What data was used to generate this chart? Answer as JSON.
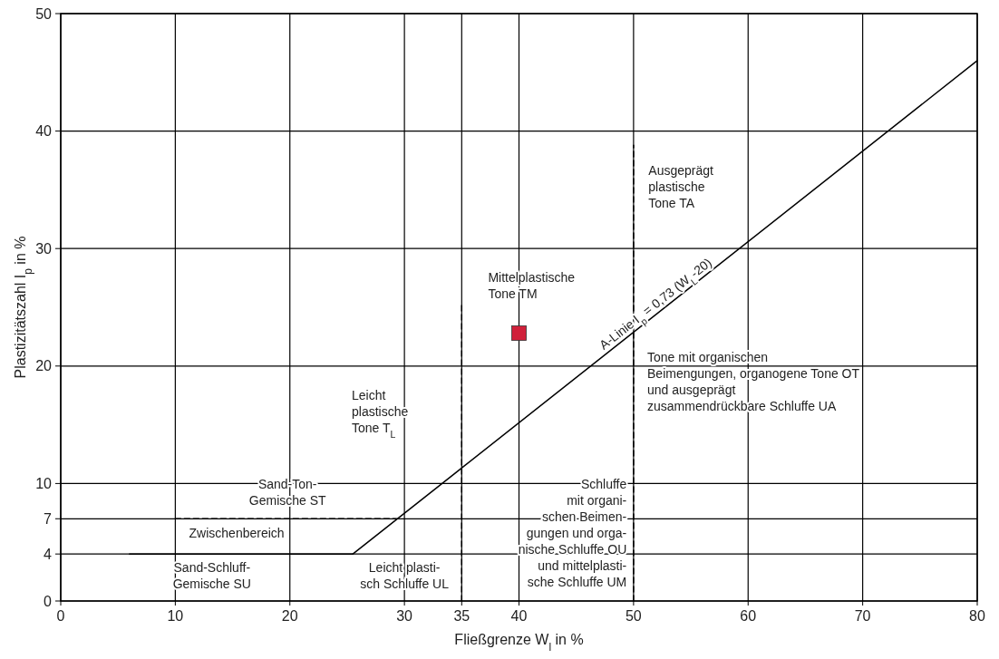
{
  "chart_data": {
    "type": "scatter",
    "xlabel": "Fließgrenze W$_{l}$ in %",
    "ylabel": "Plastizitätszahl I$_{p}$ in %",
    "xlim": [
      0,
      80
    ],
    "xticks": [
      0,
      10,
      20,
      30,
      35,
      40,
      50,
      60,
      70,
      80
    ],
    "ylim": [
      0,
      50
    ],
    "yticks": [
      0,
      4,
      7,
      10,
      20,
      30,
      40,
      50
    ],
    "grid": true,
    "series": [
      {
        "type": "line",
        "x": [
          25.5,
          80
        ],
        "values": [
          4,
          46
        ],
        "color": "#000000",
        "line_style": "solid"
      },
      {
        "type": "line",
        "x": [
          6,
          25.5
        ],
        "values": [
          4,
          4
        ],
        "color": "#000000",
        "line_style": "solid"
      },
      {
        "type": "line",
        "x": [
          10,
          29.3
        ],
        "values": [
          7,
          7
        ],
        "color": "#000000",
        "line_style": "dashed"
      },
      {
        "type": "line",
        "x": [
          35,
          35
        ],
        "values": [
          0,
          25.3
        ],
        "color": "#000000",
        "line_style": "dashed"
      },
      {
        "type": "line",
        "x": [
          50,
          50
        ],
        "values": [
          0,
          38.8
        ],
        "color": "#000000",
        "line_style": "dashed"
      },
      {
        "x": [
          40
        ],
        "values": [
          22.8
        ],
        "color": "#d0203a",
        "marker": "square"
      }
    ],
    "annotations": [
      {
        "text": "A-Linie I$_{p}$ = 0,73 (W$_{L}$-20)",
        "x": 52.4,
        "y": 24.7
      },
      "Ausgeprägt\nplastische\nTone TA",
      "Mittelplastische\nTone TM",
      "Tone mit organischen\nBeimengungen, organogene Tone OT\nund ausgeprägt\nzusammendrückbare Schluffe UA",
      "Leicht\nplastische\nTone T$_{L}$",
      "Sand-Ton-\nGemische ST",
      "Zwischenbereich",
      "Sand-Schluff-\nGemische SU",
      "Leicht plasti-\nsch Schluffe UL",
      "Schluffe\nmit organi-\nschen Beimen-\ngungen und orga-\nnische Schluffe OU\nund mittelplasti-\nsche Schluffe UM"
    ]
  }
}
